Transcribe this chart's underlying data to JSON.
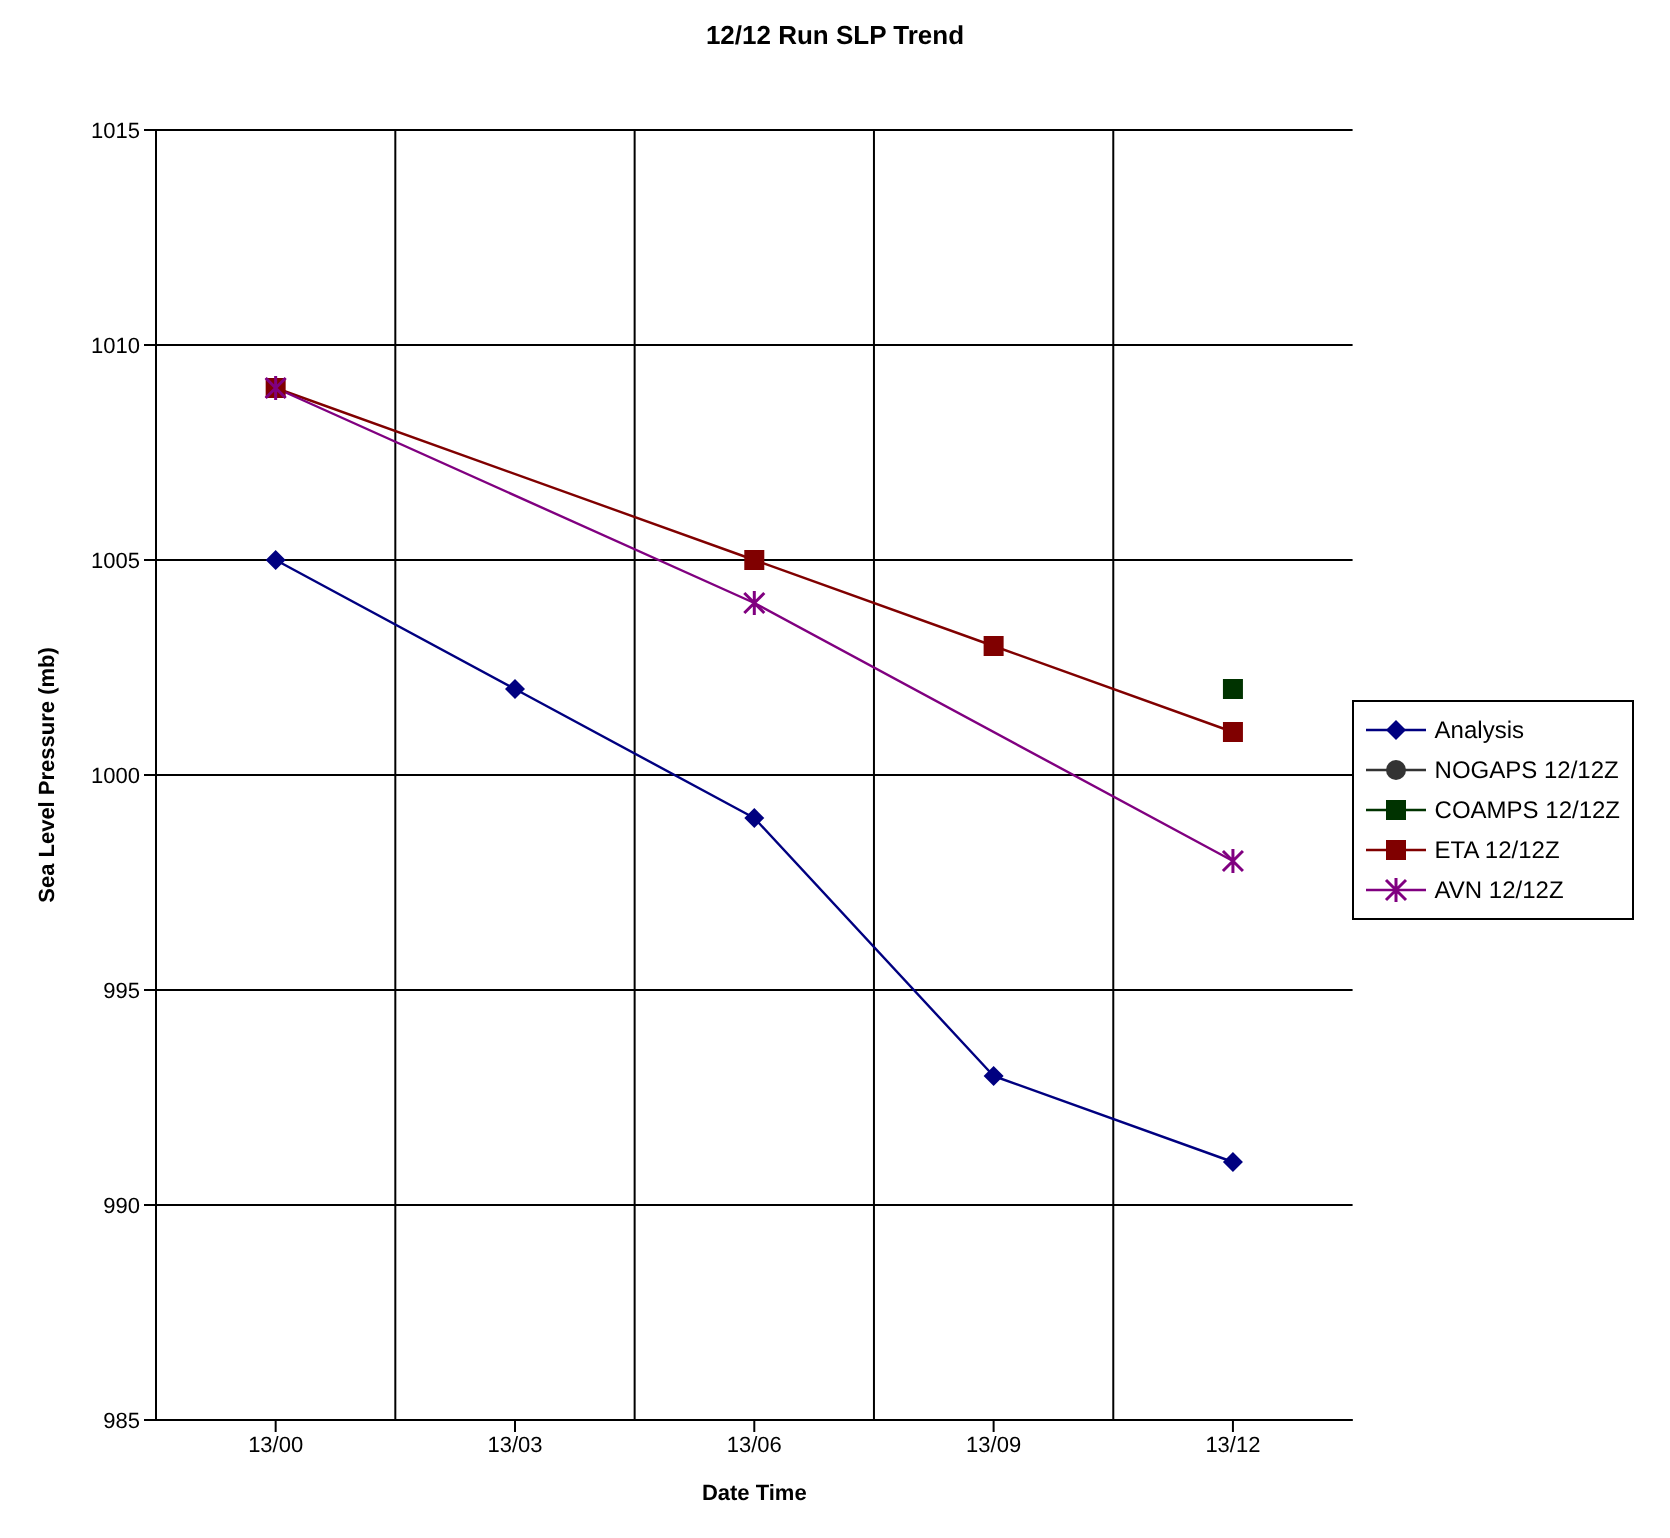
{
  "chart_data": {
    "type": "line",
    "title": "12/12 Run SLP Trend",
    "xlabel": "Date Time",
    "ylabel": "Sea Level Pressure (mb)",
    "categories": [
      "13/00",
      "13/03",
      "13/06",
      "13/09",
      "13/12"
    ],
    "series": [
      {
        "name": "Analysis",
        "color": "#000080",
        "marker": "diamond",
        "values": [
          1005,
          1002,
          999,
          993,
          991
        ]
      },
      {
        "name": "NOGAPS 12/12Z",
        "color": "#333333",
        "marker": "circle",
        "values": [
          null,
          null,
          null,
          null,
          null
        ]
      },
      {
        "name": "COAMPS 12/12Z",
        "color": "#003300",
        "marker": "square",
        "values": [
          null,
          null,
          null,
          null,
          1002
        ]
      },
      {
        "name": "ETA 12/12Z",
        "color": "#800000",
        "marker": "square",
        "values": [
          1009,
          null,
          1005,
          1003,
          1001
        ]
      },
      {
        "name": "AVN 12/12Z",
        "color": "#800080",
        "marker": "cross",
        "values": [
          1009,
          null,
          1004,
          null,
          998
        ]
      }
    ],
    "ylim": [
      985,
      1015
    ],
    "yticks": [
      985,
      990,
      995,
      1000,
      1005,
      1010,
      1015
    ],
    "grid": true,
    "legend": "right",
    "line_style": "solid"
  }
}
